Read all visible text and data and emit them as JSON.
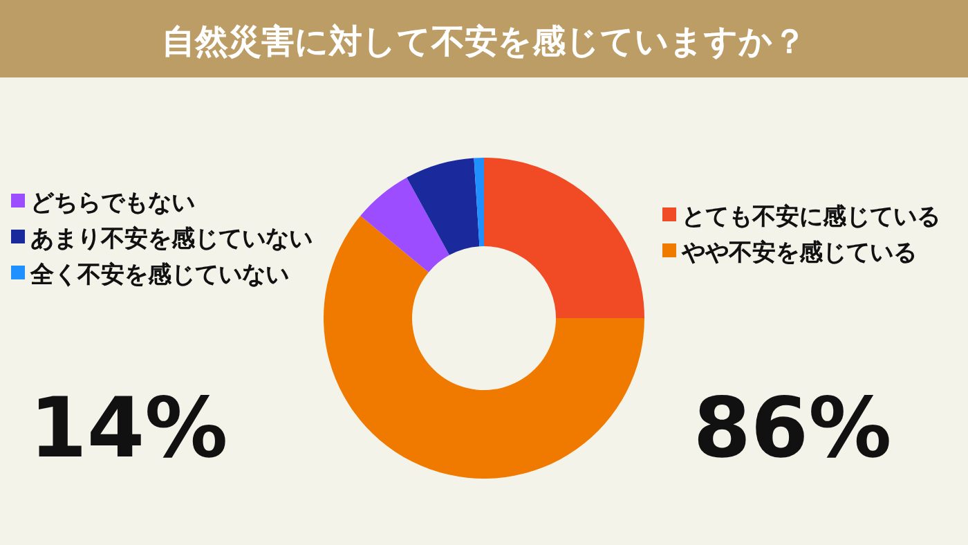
{
  "chart_data": {
    "type": "donut",
    "title": "自然災害に対して不安を感じていますか？",
    "categories": [
      "とても不安に感じている",
      "やや不安を感じている",
      "どちらでもない",
      "あまり不安を感じていない",
      "全く不安を感じていない"
    ],
    "values": [
      25,
      61,
      6,
      7,
      1
    ],
    "colors": [
      "#f04b24",
      "#f07a00",
      "#9b4dff",
      "#1a2a9c",
      "#1e90ff"
    ],
    "legend": "top",
    "annotations": [
      "14%",
      "86%"
    ]
  }
}
